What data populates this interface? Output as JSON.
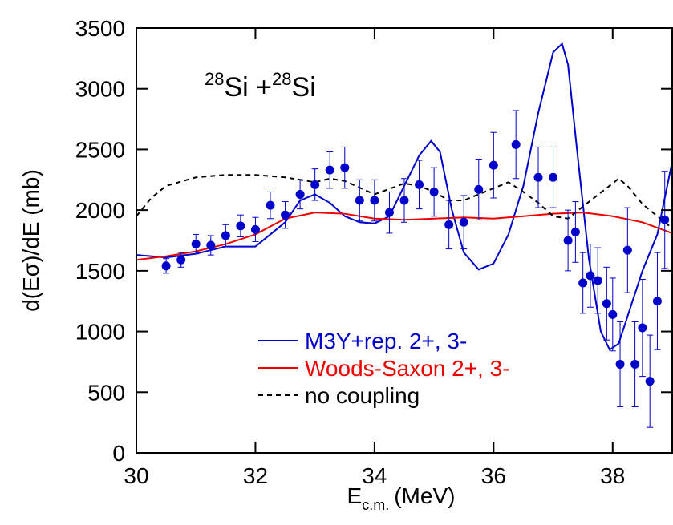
{
  "chart_data": {
    "type": "line",
    "annotation": [
      "28",
      "Si +",
      "28",
      "Si"
    ],
    "y_label": "d(Eσ)/dE  (mb)",
    "x_label": [
      "E",
      "c.m.",
      "(MeV)"
    ],
    "xlim": [
      30,
      39
    ],
    "xticks": [
      30,
      32,
      34,
      36,
      38
    ],
    "ylim": [
      0,
      3500
    ],
    "yticks": [
      0,
      500,
      1000,
      1500,
      2000,
      2500,
      3000,
      3500
    ],
    "series": [
      {
        "name": "M3Y+rep. 2+, 3-",
        "type": "line",
        "color": "#0000cc",
        "dash": false,
        "x": [
          30,
          30.5,
          31,
          31.5,
          32,
          32.5,
          32.75,
          33,
          33.25,
          33.5,
          33.75,
          34,
          34.25,
          34.5,
          34.75,
          34.95,
          35.1,
          35.3,
          35.5,
          35.75,
          36,
          36.25,
          36.5,
          36.75,
          37,
          37.15,
          37.25,
          37.4,
          37.6,
          37.8,
          37.95,
          38.1,
          38.3,
          38.5,
          38.75,
          39
        ],
        "values": [
          1630,
          1610,
          1640,
          1700,
          1700,
          1900,
          2080,
          2130,
          2060,
          1950,
          1900,
          1890,
          1950,
          2200,
          2450,
          2570,
          2480,
          2000,
          1650,
          1510,
          1560,
          1800,
          2200,
          2800,
          3300,
          3370,
          3200,
          2500,
          1600,
          1000,
          850,
          900,
          1200,
          1500,
          1800,
          2400
        ]
      },
      {
        "name": "Woods-Saxon 2+, 3-",
        "type": "line",
        "color": "#ee0000",
        "dash": false,
        "x": [
          30,
          30.5,
          31,
          31.5,
          32,
          32.5,
          33,
          33.5,
          34,
          34.5,
          35,
          35.5,
          36,
          36.5,
          37,
          37.5,
          38,
          38.5,
          39
        ],
        "values": [
          1590,
          1620,
          1660,
          1720,
          1800,
          1930,
          1980,
          1970,
          1930,
          1920,
          1930,
          1940,
          1930,
          1950,
          1970,
          1980,
          1950,
          1900,
          1810
        ]
      },
      {
        "name": "no coupling",
        "type": "line",
        "color": "#000000",
        "dash": true,
        "x": [
          30,
          30.25,
          30.5,
          31,
          31.5,
          32,
          32.5,
          33,
          33.25,
          33.5,
          34,
          34.5,
          34.75,
          35,
          35.25,
          35.5,
          36,
          36.25,
          36.5,
          36.75,
          37,
          37.25,
          37.5,
          38,
          38.1,
          38.25,
          38.5,
          39
        ],
        "values": [
          1950,
          2100,
          2200,
          2270,
          2290,
          2290,
          2270,
          2230,
          2260,
          2240,
          2130,
          2220,
          2200,
          2150,
          2080,
          2080,
          2180,
          2230,
          2150,
          2060,
          1950,
          1930,
          2030,
          2220,
          2260,
          2200,
          2050,
          1850
        ]
      },
      {
        "type": "scatter",
        "color": "#0000cc",
        "x": [
          30.5,
          30.75,
          31,
          31.25,
          31.5,
          31.75,
          32,
          32.25,
          32.5,
          32.75,
          33,
          33.25,
          33.5,
          33.75,
          34,
          34.25,
          34.5,
          34.75,
          35,
          35.25,
          35.5,
          35.75,
          36,
          36.375,
          36.75,
          37,
          37.25,
          37.375,
          37.5,
          37.625,
          37.75,
          37.9,
          38,
          38.125,
          38.25,
          38.375,
          38.5,
          38.625,
          38.75,
          38.875
        ],
        "values": [
          1540,
          1590,
          1720,
          1710,
          1790,
          1870,
          1840,
          2040,
          1960,
          2130,
          2210,
          2330,
          2350,
          2080,
          2080,
          1980,
          2080,
          2210,
          2150,
          1880,
          1900,
          2170,
          2370,
          2540,
          2270,
          2270,
          1750,
          1820,
          1400,
          1460,
          1420,
          1230,
          1140,
          730,
          1670,
          730,
          1030,
          590,
          1250,
          1920
        ],
        "errors": [
          60,
          60,
          80,
          80,
          90,
          90,
          100,
          110,
          110,
          120,
          130,
          150,
          170,
          170,
          170,
          170,
          180,
          200,
          200,
          200,
          220,
          250,
          270,
          280,
          250,
          250,
          250,
          250,
          250,
          260,
          270,
          300,
          300,
          350,
          350,
          350,
          400,
          380,
          400,
          400
        ]
      }
    ]
  }
}
